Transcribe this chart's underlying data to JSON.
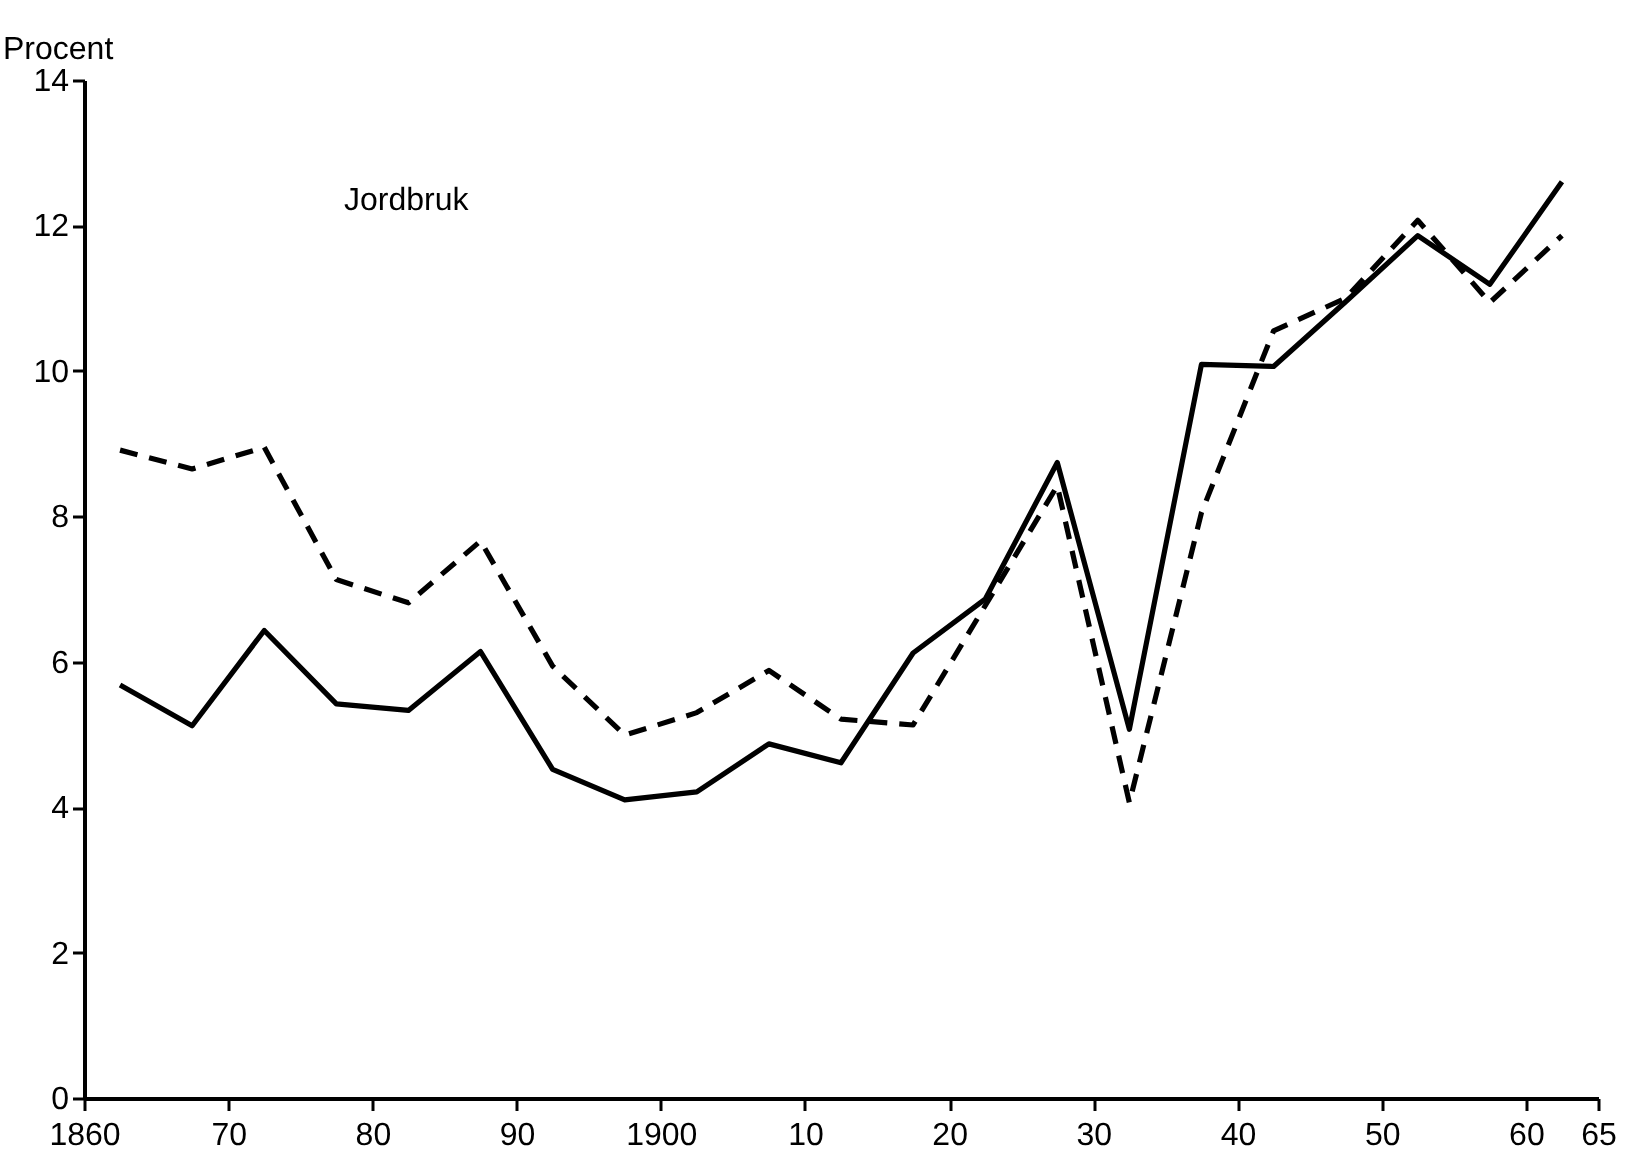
{
  "chart_data": {
    "type": "line",
    "ylabel": "Procent",
    "annotations": [
      "Jordbruk"
    ],
    "x": [
      1862.5,
      1867.5,
      1872.5,
      1877.5,
      1882.5,
      1887.5,
      1892.5,
      1897.5,
      1902.5,
      1907.5,
      1912.5,
      1917.5,
      1922.5,
      1927.5,
      1932.5,
      1937.5,
      1942.5,
      1947.5,
      1952.5,
      1957.5,
      1962.5
    ],
    "series": [
      {
        "color": "#000000",
        "line_style": "solid",
        "values": [
          5.68,
          5.12,
          6.43,
          5.42,
          5.33,
          6.14,
          4.52,
          4.1,
          4.21,
          4.87,
          4.61,
          6.12,
          6.86,
          8.74,
          5.07,
          10.09,
          10.06,
          10.95,
          11.86,
          11.19,
          12.6
        ]
      },
      {
        "color": "#000000",
        "line_style": "dashed",
        "values": [
          8.91,
          8.65,
          8.95,
          7.13,
          6.81,
          7.66,
          5.94,
          4.99,
          5.3,
          5.88,
          5.21,
          5.13,
          6.77,
          8.42,
          4.06,
          8.05,
          10.55,
          11.0,
          12.07,
          10.94,
          11.86
        ]
      }
    ],
    "xlim": [
      1860,
      1965
    ],
    "xticks": [
      {
        "value": 1860,
        "label": "1860"
      },
      {
        "value": 1870,
        "label": "70"
      },
      {
        "value": 1880,
        "label": "80"
      },
      {
        "value": 1890,
        "label": "90"
      },
      {
        "value": 1900,
        "label": "1900"
      },
      {
        "value": 1910,
        "label": "10"
      },
      {
        "value": 1920,
        "label": "20"
      },
      {
        "value": 1930,
        "label": "30"
      },
      {
        "value": 1940,
        "label": "40"
      },
      {
        "value": 1950,
        "label": "50"
      },
      {
        "value": 1960,
        "label": "60"
      },
      {
        "value": 1965,
        "label": "65"
      }
    ],
    "ylim": [
      0,
      14
    ],
    "yticks": [
      0,
      2,
      4,
      6,
      8,
      10,
      12,
      14
    ],
    "grid": false,
    "marker": "none"
  }
}
